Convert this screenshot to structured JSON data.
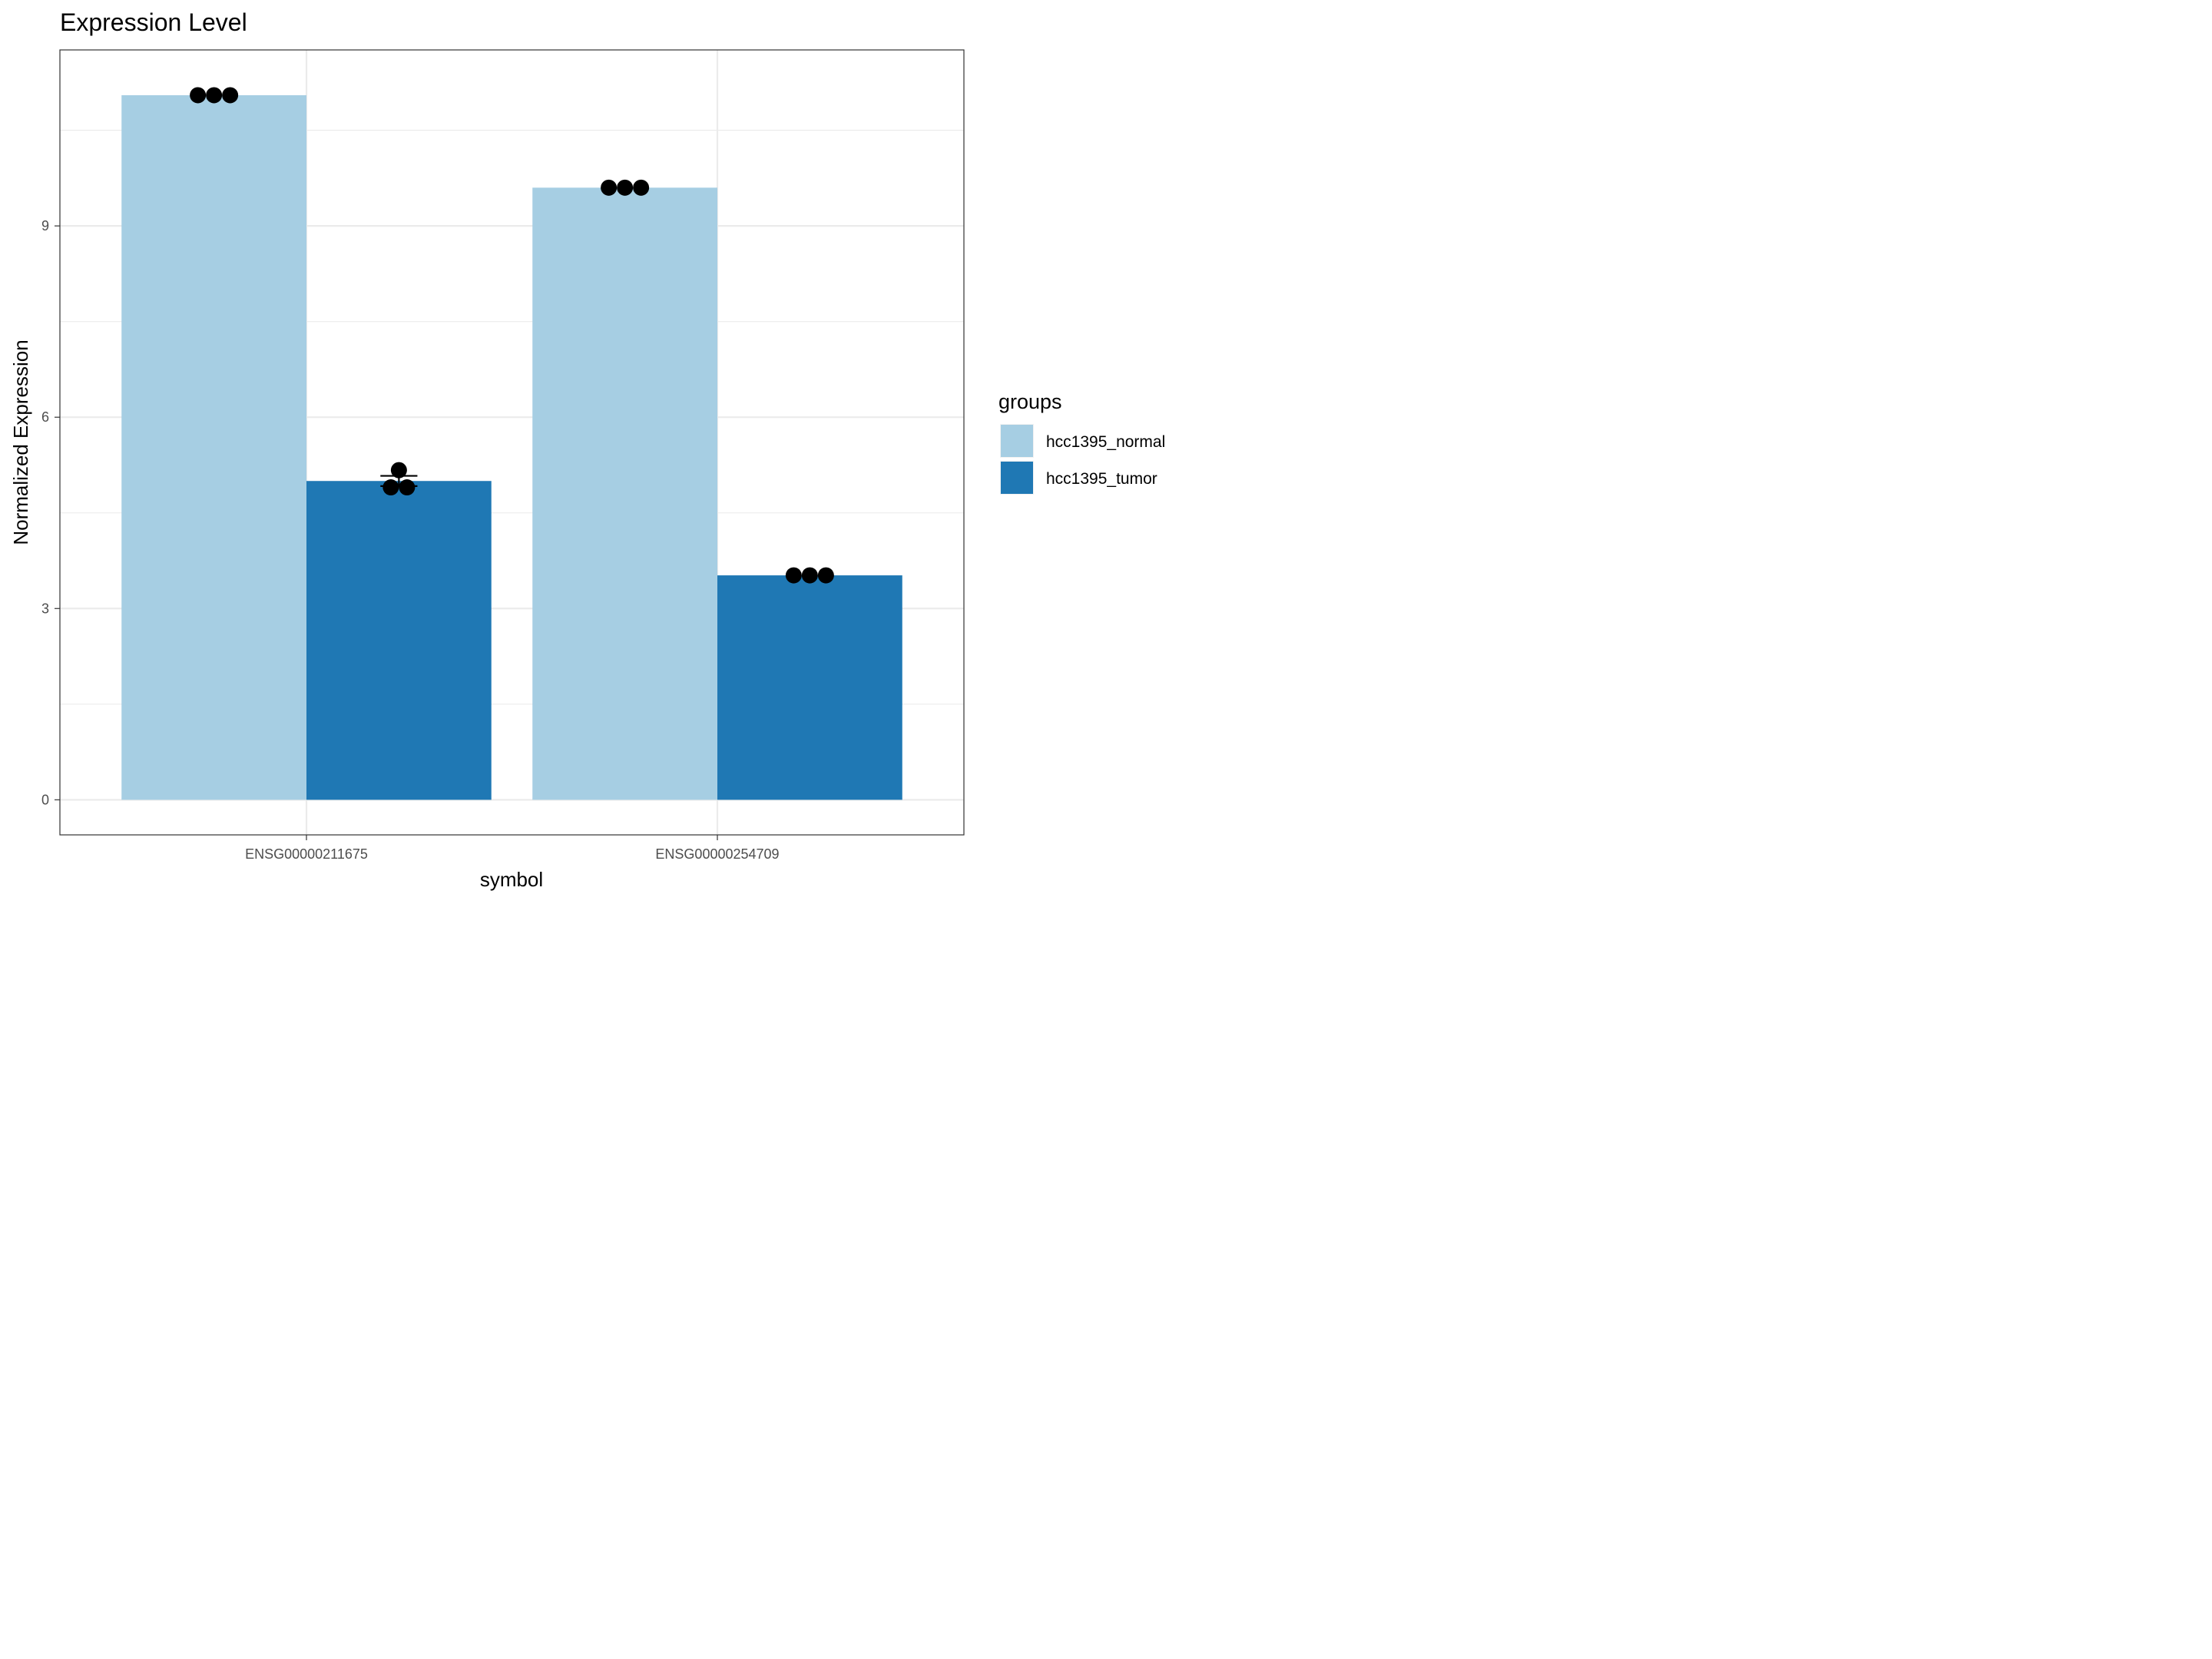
{
  "chart_data": {
    "type": "bar",
    "title": "Expression Level",
    "xlabel": "symbol",
    "ylabel": "Normalized Expression",
    "categories": [
      "ENSG00000211675",
      "ENSG00000254709"
    ],
    "series": [
      {
        "name": "hcc1395_normal",
        "color": "#a6cee3",
        "values": [
          11.05,
          9.6
        ],
        "points": [
          [
            11.05,
            11.05,
            11.05
          ],
          [
            9.6,
            9.6,
            9.6
          ]
        ],
        "error": [
          null,
          null
        ]
      },
      {
        "name": "hcc1395_tumor",
        "color": "#1f78b4",
        "values": [
          5.0,
          3.52
        ],
        "points": [
          [
            4.9,
            5.17,
            4.9
          ],
          [
            3.52,
            3.52,
            3.52
          ]
        ],
        "error": [
          [
            4.92,
            5.08
          ],
          null
        ]
      }
    ],
    "yticks": [
      0,
      3,
      6,
      9
    ],
    "ylim": [
      -0.55,
      11.76
    ],
    "grid": true,
    "legend": {
      "title": "groups",
      "placement": "right"
    }
  }
}
